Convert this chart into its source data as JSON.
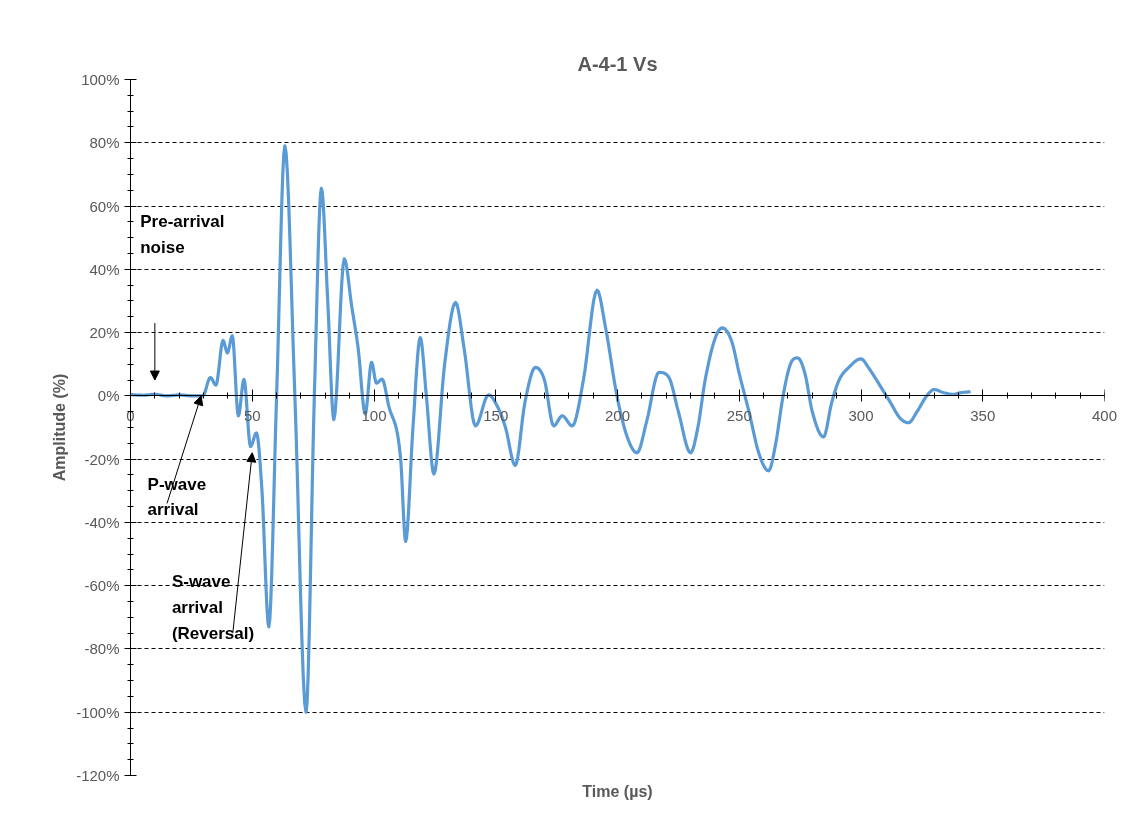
{
  "chart_data": {
    "type": "line",
    "title": "A-4-1 Vs",
    "xlabel": "Time (µs)",
    "ylabel": "Amplitude (%)",
    "xlim": [
      0,
      400
    ],
    "xticks": [
      0,
      50,
      100,
      150,
      200,
      250,
      300,
      350,
      400
    ],
    "ylim": [
      -120,
      100
    ],
    "yticks": [
      {
        "value": -120,
        "label": "-120%"
      },
      {
        "value": -100,
        "label": "-100%"
      },
      {
        "value": -80,
        "label": "-80%"
      },
      {
        "value": -60,
        "label": "-60%"
      },
      {
        "value": -40,
        "label": "-40%"
      },
      {
        "value": -20,
        "label": "-20%"
      },
      {
        "value": 0,
        "label": "0%"
      },
      {
        "value": 20,
        "label": "20%"
      },
      {
        "value": 40,
        "label": "40%"
      },
      {
        "value": 60,
        "label": "60%"
      },
      {
        "value": 80,
        "label": "80%"
      },
      {
        "value": 100,
        "label": "100%"
      }
    ],
    "grid": "y",
    "line_style": "solid",
    "series": [
      {
        "color": "#5b9bd5",
        "x": [
          0,
          5,
          10,
          15,
          20,
          25,
          29.7,
          32.8,
          35.1,
          38,
          39.8,
          41.8,
          44.3,
          46.6,
          49.3,
          51.7,
          54,
          56.8,
          60,
          63.4,
          67.5,
          72.1,
          75.5,
          78.4,
          81,
          83.5,
          87.8,
          90.9,
          93.5,
          96.4,
          99,
          101,
          103.3,
          106,
          110.9,
          113,
          116,
          119,
          121.5,
          124.6,
          129,
          133.5,
          137,
          141.7,
          147,
          150.6,
          154,
          158,
          162,
          166.3,
          170,
          173.8,
          177.3,
          181.4,
          186,
          191.6,
          195,
          199.9,
          204,
          208,
          212,
          217,
          221,
          225,
          230,
          233,
          236,
          240,
          243,
          247,
          250,
          254,
          258,
          262,
          265,
          268,
          271,
          274,
          277,
          280,
          284.6,
          288,
          291,
          295,
          300,
          303,
          308,
          312,
          316,
          319.5,
          323,
          327,
          330,
          334,
          338,
          341,
          345
        ],
        "values": [
          0.4,
          0.2,
          0.5,
          0,
          0.3,
          0,
          0,
          5.8,
          3.4,
          17.5,
          13.6,
          19,
          -6.3,
          5.2,
          -16,
          -11.7,
          -30,
          -73,
          0,
          79,
          0,
          -100,
          0,
          65.6,
          30,
          -7.5,
          43.3,
          28,
          15,
          -5.7,
          10.6,
          4,
          5.3,
          -3,
          -19.5,
          -46,
          -10,
          18.4,
          0,
          -24.7,
          10,
          29.5,
          15,
          -9.5,
          0.3,
          -3.2,
          -10,
          -22,
          -2,
          9,
          5,
          -9.5,
          -6.3,
          -9.5,
          5,
          33.4,
          22,
          -0.5,
          -13,
          -18,
          -8,
          7.4,
          6,
          -5,
          -18,
          -10,
          5,
          18,
          21.5,
          17,
          7,
          -5,
          -18,
          -23.7,
          -15,
          0,
          10,
          12,
          7,
          -5,
          -13,
          -2,
          5,
          9,
          11.7,
          9,
          3,
          -2,
          -7,
          -8.5,
          -5,
          0,
          2,
          1,
          0.5,
          1,
          1.3
        ]
      }
    ],
    "annotations": [
      "Pre-arrival noise",
      {
        "text": "P-wave arrival",
        "x": 29,
        "y": 0
      },
      {
        "text": "S-wave arrival (Reversal)",
        "x": 50,
        "y": -18
      }
    ]
  }
}
